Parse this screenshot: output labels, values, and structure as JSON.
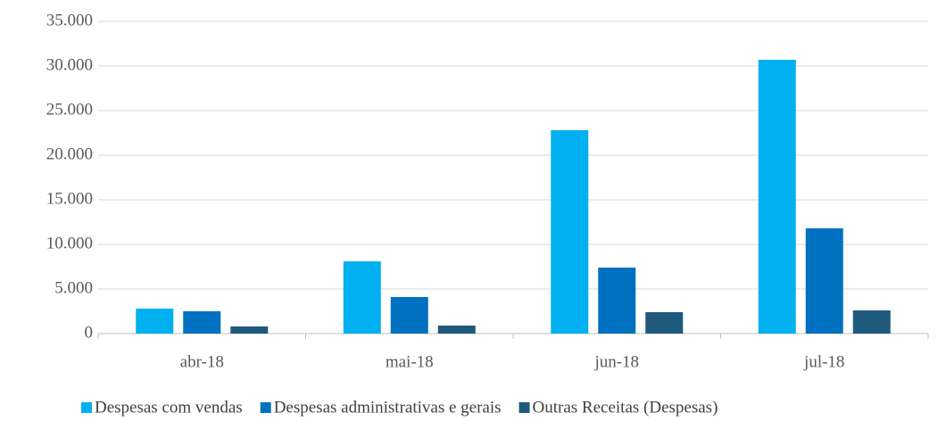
{
  "chart_data": {
    "type": "bar",
    "categories": [
      "abr-18",
      "mai-18",
      "jun-18",
      "jul-18"
    ],
    "series": [
      {
        "name": "Despesas com vendas",
        "color": "#00b0f0",
        "values": [
          2800,
          8100,
          22800,
          30700
        ]
      },
      {
        "name": "Despesas administrativas e gerais",
        "color": "#0070c0",
        "values": [
          2500,
          4100,
          7400,
          11800
        ]
      },
      {
        "name": "Outras Receitas (Despesas)",
        "color": "#1f5a7d",
        "values": [
          800,
          900,
          2400,
          2600
        ]
      }
    ],
    "ylim": [
      0,
      35000
    ],
    "yticks": [
      0,
      {
        "value": 5000,
        "label": "5.000"
      },
      {
        "value": 10000,
        "label": "10.000"
      },
      {
        "value": 15000,
        "label": "15.000"
      },
      {
        "value": 20000,
        "label": "20.000"
      },
      {
        "value": 25000,
        "label": "25.000"
      },
      {
        "value": 30000,
        "label": "30.000"
      },
      {
        "value": 35000,
        "label": "35.000"
      }
    ],
    "grid": true,
    "legend": "bottom"
  }
}
